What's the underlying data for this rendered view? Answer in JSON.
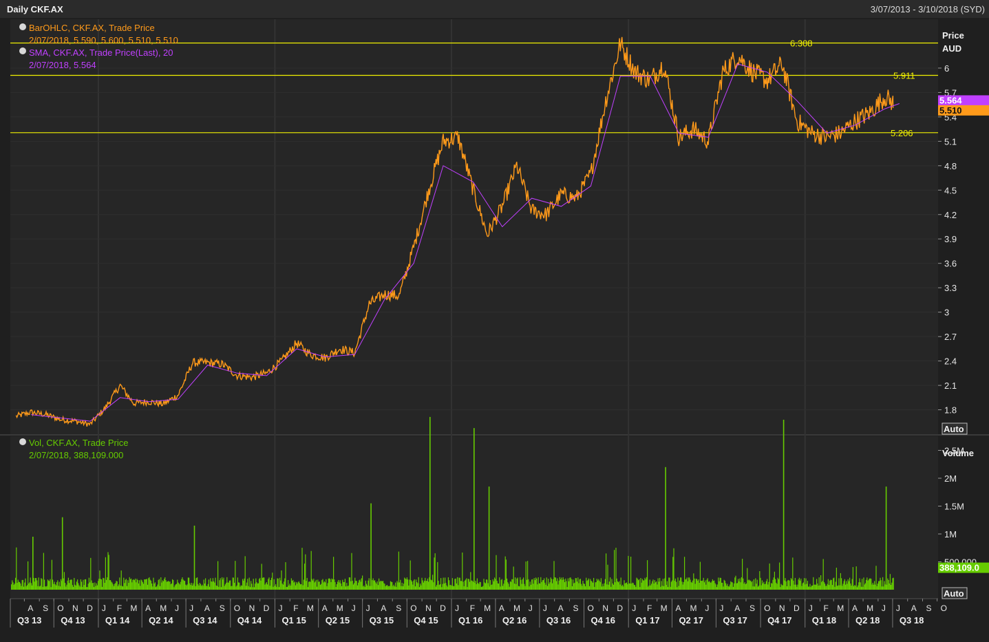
{
  "header": {
    "title": "Daily CKF.AX",
    "range": "3/07/2013 - 3/10/2018 (SYD)"
  },
  "legend": {
    "bar_name": "BarOHLC, CKF.AX, Trade Price",
    "bar_values": "2/07/2018, 5.590, 5.600, 5.510, 5.510",
    "sma_name": "SMA, CKF.AX, Trade Price(Last),  20",
    "sma_values": "2/07/2018, 5.564",
    "vol_name": "Vol, CKF.AX, Trade Price",
    "vol_values": "2/07/2018, 388,109.000"
  },
  "axes": {
    "price_title_1": "Price",
    "price_title_2": "AUD",
    "volume_title": "Volume",
    "auto_label_price": "Auto",
    "auto_label_volume": "Auto",
    "price_ticks": [
      "6",
      "5.7",
      "5.4",
      "5.1",
      "4.8",
      "4.5",
      "4.2",
      "3.9",
      "3.6",
      "3.3",
      "3",
      "2.7",
      "2.4",
      "2.1",
      "1.8"
    ],
    "price_tick_values": [
      6,
      5.7,
      5.4,
      5.1,
      4.8,
      4.5,
      4.2,
      3.9,
      3.6,
      3.3,
      3,
      2.7,
      2.4,
      2.1,
      1.8
    ],
    "volume_ticks": [
      "2.5M",
      "2M",
      "1.5M",
      "1M",
      "500,000"
    ],
    "volume_tick_values": [
      2500000,
      2000000,
      1500000,
      1000000,
      500000
    ],
    "months": [
      "A",
      "S",
      "O",
      "N",
      "D",
      "J",
      "F",
      "M",
      "A",
      "M",
      "J",
      "J",
      "A",
      "S",
      "O",
      "N",
      "D",
      "J",
      "F",
      "M",
      "A",
      "M",
      "J",
      "J",
      "A",
      "S",
      "O",
      "N",
      "D",
      "J",
      "F",
      "M",
      "A",
      "M",
      "J",
      "J",
      "A",
      "S",
      "O",
      "N",
      "D",
      "J",
      "F",
      "M",
      "A",
      "M",
      "J",
      "J",
      "A",
      "S",
      "O",
      "N",
      "D",
      "J",
      "F",
      "M",
      "A",
      "M",
      "J",
      "J",
      "A",
      "S",
      "O"
    ],
    "quarters": [
      "Q3 13",
      "Q4 13",
      "Q1 14",
      "Q2 14",
      "Q3 14",
      "Q4 14",
      "Q1 15",
      "Q2 15",
      "Q3 15",
      "Q4 15",
      "Q1 16",
      "Q2 16",
      "Q3 16",
      "Q4 16",
      "Q1 17",
      "Q2 17",
      "Q3 17",
      "Q4 17",
      "Q1 18",
      "Q2 18",
      "Q3 18"
    ]
  },
  "levels": [
    {
      "value": 6.308,
      "label": "6.308"
    },
    {
      "value": 5.911,
      "label": "5.911"
    },
    {
      "value": 5.206,
      "label": "5.206"
    }
  ],
  "last_markers": [
    {
      "label": "5.564",
      "value": 5.564,
      "color": "#c040ff"
    },
    {
      "label": "5.510",
      "value": 5.51,
      "color": "#ff9a1a"
    }
  ],
  "volume_last_label": "388,109.0",
  "volume_last_value": 388109,
  "colors": {
    "price": "#ff9a1a",
    "sma": "#c040ff",
    "volume": "#66cc00",
    "level": "#f2f200"
  },
  "chart_data": {
    "type": "line",
    "title": "Daily CKF.AX",
    "ylabel": "Price AUD",
    "ylim": [
      1.5,
      6.6
    ],
    "volume_ylim": [
      0,
      3000000
    ],
    "x_range": [
      "2013-07-03",
      "2018-10-03"
    ],
    "series": [
      {
        "name": "BarOHLC, CKF.AX, Trade Price",
        "x": [
          "2013-07",
          "2013-08",
          "2013-09",
          "2013-10",
          "2013-11",
          "2013-12",
          "2014-01",
          "2014-02",
          "2014-03",
          "2014-04",
          "2014-05",
          "2014-06",
          "2014-07",
          "2014-08",
          "2014-09",
          "2014-10",
          "2014-11",
          "2014-12",
          "2015-01",
          "2015-02",
          "2015-03",
          "2015-04",
          "2015-05",
          "2015-06",
          "2015-07",
          "2015-08",
          "2015-09",
          "2015-10",
          "2015-11",
          "2015-12",
          "2016-01",
          "2016-02",
          "2016-03",
          "2016-04",
          "2016-05",
          "2016-06",
          "2016-07",
          "2016-08",
          "2016-09",
          "2016-10",
          "2016-11",
          "2016-12",
          "2017-01",
          "2017-02",
          "2017-03",
          "2017-04",
          "2017-05",
          "2017-06",
          "2017-07",
          "2017-08",
          "2017-09",
          "2017-10",
          "2017-11",
          "2017-12",
          "2018-01",
          "2018-02",
          "2018-03",
          "2018-04",
          "2018-05",
          "2018-06",
          "2018-07"
        ],
        "values": [
          1.72,
          1.77,
          1.74,
          1.68,
          1.66,
          1.62,
          1.82,
          2.1,
          1.88,
          1.9,
          1.87,
          1.98,
          2.38,
          2.38,
          2.36,
          2.22,
          2.2,
          2.25,
          2.4,
          2.62,
          2.48,
          2.44,
          2.55,
          2.5,
          3.1,
          3.22,
          3.2,
          3.8,
          4.5,
          5.1,
          5.15,
          4.5,
          3.95,
          4.3,
          4.8,
          4.25,
          4.2,
          4.45,
          4.4,
          4.7,
          5.6,
          6.3,
          5.95,
          5.85,
          6.05,
          5.15,
          5.25,
          5.1,
          5.95,
          6.15,
          5.95,
          5.85,
          6.05,
          5.35,
          5.2,
          5.15,
          5.2,
          5.35,
          5.45,
          5.65,
          5.51
        ]
      },
      {
        "name": "SMA, CKF.AX, Trade Price(Last),  20",
        "x": [
          "2013-08",
          "2013-10",
          "2013-12",
          "2014-02",
          "2014-04",
          "2014-06",
          "2014-08",
          "2014-10",
          "2014-12",
          "2015-02",
          "2015-04",
          "2015-06",
          "2015-08",
          "2015-10",
          "2015-12",
          "2016-02",
          "2016-04",
          "2016-06",
          "2016-08",
          "2016-10",
          "2016-12",
          "2017-02",
          "2017-04",
          "2017-06",
          "2017-08",
          "2017-10",
          "2017-12",
          "2018-02",
          "2018-04",
          "2018-06",
          "2018-07"
        ],
        "values": [
          1.74,
          1.7,
          1.66,
          1.95,
          1.9,
          1.93,
          2.35,
          2.25,
          2.22,
          2.55,
          2.45,
          2.48,
          3.15,
          3.6,
          4.8,
          4.6,
          4.05,
          4.4,
          4.3,
          4.55,
          5.9,
          5.9,
          5.2,
          5.15,
          6.05,
          5.95,
          5.6,
          5.2,
          5.3,
          5.5,
          5.564
        ]
      }
    ],
    "volume": {
      "name": "Vol, CKF.AX, Trade Price",
      "typical": 150000,
      "spikes": [
        {
          "x": "2013-09",
          "value": 950000
        },
        {
          "x": "2013-11",
          "value": 1300000
        },
        {
          "x": "2014-08",
          "value": 1150000
        },
        {
          "x": "2015-08",
          "value": 1550000
        },
        {
          "x": "2015-12",
          "value": 3100000
        },
        {
          "x": "2016-03",
          "value": 2900000
        },
        {
          "x": "2016-04",
          "value": 1850000
        },
        {
          "x": "2017-04",
          "value": 2200000
        },
        {
          "x": "2017-12",
          "value": 3050000
        },
        {
          "x": "2018-07",
          "value": 1850000
        }
      ],
      "last": 388109
    }
  }
}
